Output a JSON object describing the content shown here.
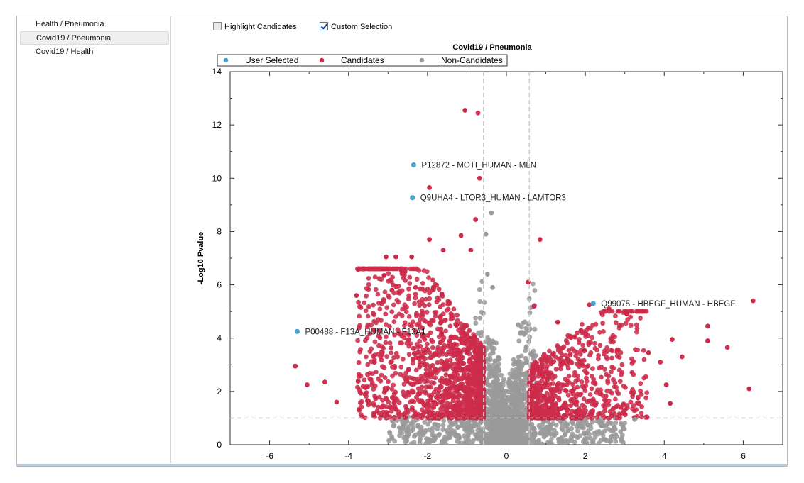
{
  "sidebar": {
    "items": [
      {
        "label": "Health / Pneumonia",
        "selected": false
      },
      {
        "label": "Covid19 / Pneumonia",
        "selected": true
      },
      {
        "label": "Covid19 / Health",
        "selected": false
      }
    ]
  },
  "toolbar": {
    "highlight_label": "Highlight Candidates",
    "highlight_checked": false,
    "custom_label": "Custom Selection",
    "custom_checked": true
  },
  "chart_data": {
    "type": "scatter",
    "title": "Covid19 / Pneumonia",
    "xlabel": "",
    "ylabel": "-Log10 Pvalue",
    "xlim": [
      -7,
      7
    ],
    "ylim": [
      0,
      14
    ],
    "xticks": [
      -6,
      -4,
      -2,
      0,
      2,
      4,
      6
    ],
    "yticks": [
      0,
      2,
      4,
      6,
      8,
      10,
      12,
      14
    ],
    "grid": false,
    "legend_position": "top",
    "thresholds": {
      "x_left": -0.58,
      "x_right": 0.58,
      "y": 1.0
    },
    "colors": {
      "user_selected": "#4aa3cf",
      "candidates": "#cc2b4a",
      "non_candidates": "#9a9a9a"
    },
    "series": [
      {
        "name": "User Selected",
        "color": "#4aa3cf",
        "points": [
          {
            "x": -2.35,
            "y": 10.5,
            "label": "P12872 - MOTI_HUMAN - MLN"
          },
          {
            "x": -2.38,
            "y": 9.27,
            "label": "Q9UHA4 - LTOR3_HUMAN - LAMTOR3"
          },
          {
            "x": 2.2,
            "y": 5.3,
            "label": "Q99075 - HBEGF_HUMAN - HBEGF"
          },
          {
            "x": -5.3,
            "y": 4.25,
            "label": "P00488 - F13A_HUMAN - F13A1"
          }
        ]
      },
      {
        "name": "Candidates",
        "color": "#cc2b4a",
        "points": [
          {
            "x": -1.05,
            "y": 12.55
          },
          {
            "x": -0.72,
            "y": 12.45
          },
          {
            "x": -0.68,
            "y": 10.0
          },
          {
            "x": -1.95,
            "y": 9.65
          },
          {
            "x": -0.78,
            "y": 8.45
          },
          {
            "x": 0.85,
            "y": 7.7
          },
          {
            "x": -1.15,
            "y": 7.85
          },
          {
            "x": -1.95,
            "y": 7.7
          },
          {
            "x": -3.05,
            "y": 7.05
          },
          {
            "x": -2.8,
            "y": 7.05
          },
          {
            "x": -2.4,
            "y": 7.05
          },
          {
            "x": -2.6,
            "y": 6.5
          },
          {
            "x": -3.1,
            "y": 6.35
          },
          {
            "x": -2.9,
            "y": 5.8
          },
          {
            "x": -3.8,
            "y": 5.6
          },
          {
            "x": 0.55,
            "y": 6.1
          },
          {
            "x": 6.25,
            "y": 5.4
          },
          {
            "x": 2.1,
            "y": 5.25
          },
          {
            "x": 2.6,
            "y": 5.1
          },
          {
            "x": 3.05,
            "y": 4.9
          },
          {
            "x": 5.1,
            "y": 4.45
          },
          {
            "x": 4.2,
            "y": 3.95
          },
          {
            "x": 5.1,
            "y": 3.9
          },
          {
            "x": 5.6,
            "y": 3.65
          },
          {
            "x": 4.45,
            "y": 3.3
          },
          {
            "x": 4.05,
            "y": 2.25
          },
          {
            "x": 4.15,
            "y": 1.55
          },
          {
            "x": 6.15,
            "y": 2.1
          },
          {
            "x": -5.35,
            "y": 2.95
          },
          {
            "x": -5.05,
            "y": 2.25
          },
          {
            "x": -4.6,
            "y": 2.35
          },
          {
            "x": -4.3,
            "y": 1.6
          },
          {
            "x": -3.5,
            "y": 1.65
          },
          {
            "x": -2.3,
            "y": 5.9
          },
          {
            "x": -1.6,
            "y": 7.3
          },
          {
            "x": -0.9,
            "y": 7.3
          },
          {
            "x": 0.7,
            "y": 5.2
          },
          {
            "x": 1.3,
            "y": 4.6
          },
          {
            "x": 3.6,
            "y": 3.45
          },
          {
            "x": 3.9,
            "y": 3.1
          },
          {
            "x": 3.2,
            "y": 1.9
          },
          {
            "x": 2.9,
            "y": 1.4
          }
        ]
      },
      {
        "name": "Non-Candidates",
        "color": "#9a9a9a",
        "points": [
          {
            "x": -0.38,
            "y": 8.7
          },
          {
            "x": -0.52,
            "y": 7.9
          },
          {
            "x": -0.48,
            "y": 6.4
          },
          {
            "x": -0.35,
            "y": 5.9
          },
          {
            "x": 0.3,
            "y": 4.5
          },
          {
            "x": -0.2,
            "y": 3.2
          },
          {
            "x": 0.15,
            "y": 2.6
          },
          {
            "x": 3.25,
            "y": 0.95
          },
          {
            "x": 2.4,
            "y": 0.8
          },
          {
            "x": -2.6,
            "y": 0.8
          },
          {
            "x": -1.2,
            "y": 0.3
          }
        ]
      }
    ]
  }
}
